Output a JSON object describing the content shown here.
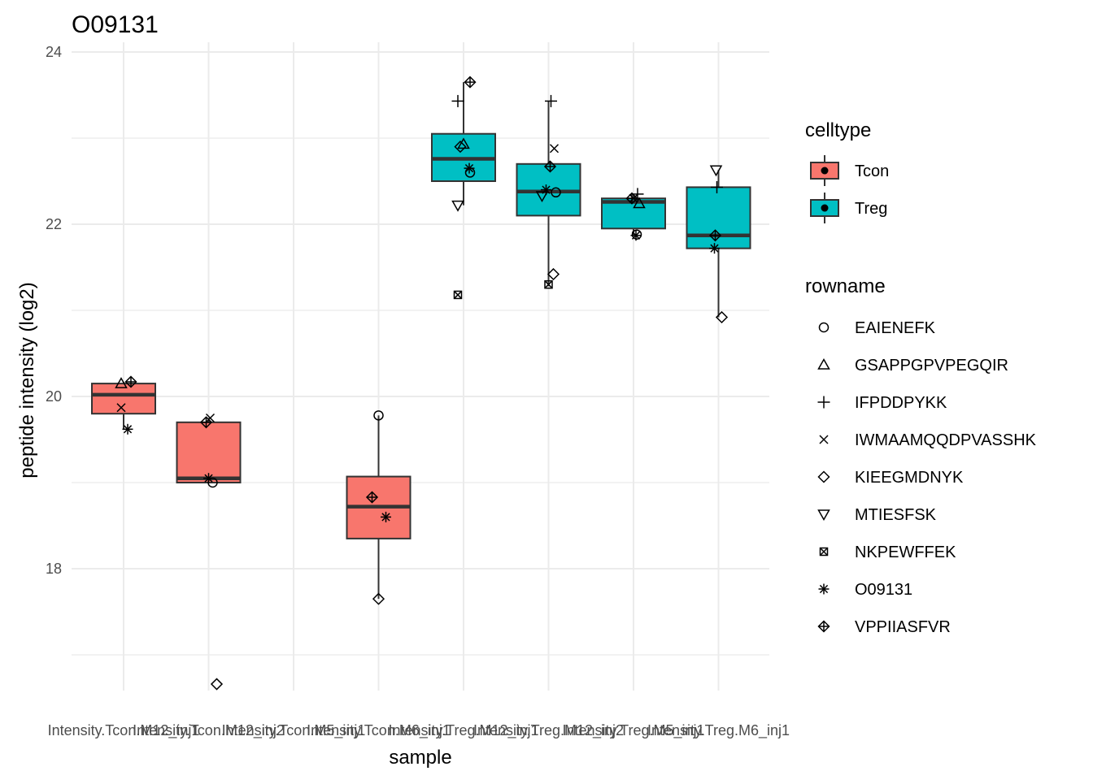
{
  "chart_data": {
    "type": "boxplot",
    "title": "O09131",
    "xlabel": "sample",
    "ylabel": "peptide intensity (log2)",
    "ylim": [
      16.5,
      24.3
    ],
    "y_ticks": [
      18,
      20,
      22,
      24
    ],
    "grid": true,
    "categories": [
      "Intensity.Tcon.M12_inj1",
      "Intensity.Tcon.M12_inj2",
      "Intensity.Tcon.M5_inj1",
      "Intensity.Tcon.M6_inj1",
      "Intensity.Treg.M12_inj1",
      "Intensity.Treg.M12_inj2",
      "Intensity.Treg.M5_inj1",
      "Intensity.Treg.M6_inj1"
    ],
    "celltype": [
      "Tcon",
      "Tcon",
      "Tcon",
      "Tcon",
      "Treg",
      "Treg",
      "Treg",
      "Treg"
    ],
    "celltype_colors": {
      "Tcon": "#F8766D",
      "Treg": "#00BFC4"
    },
    "boxes": [
      {
        "q1": 19.8,
        "median": 20.02,
        "q3": 20.15,
        "low": 19.62,
        "high": 20.17
      },
      {
        "q1": 19.0,
        "median": 19.05,
        "q3": 19.7,
        "low": 19.0,
        "high": 19.75
      },
      null,
      {
        "q1": 18.35,
        "median": 18.72,
        "q3": 19.07,
        "low": 17.65,
        "high": 19.78
      },
      {
        "q1": 22.5,
        "median": 22.76,
        "q3": 23.05,
        "low": 22.22,
        "high": 23.65
      },
      {
        "q1": 22.1,
        "median": 22.38,
        "q3": 22.7,
        "low": 21.28,
        "high": 23.43
      },
      {
        "q1": 21.95,
        "median": 22.26,
        "q3": 22.3,
        "low": 21.87,
        "high": 22.35
      },
      {
        "q1": 21.72,
        "median": 21.87,
        "q3": 22.43,
        "low": 20.92,
        "high": 22.63
      }
    ],
    "outliers": [
      {
        "sample": 1,
        "y": 16.66,
        "peptide": "KIEEGMDNYK"
      }
    ],
    "points": [
      {
        "sample": 0,
        "y": 20.15,
        "peptide": "GSAPPGPVPEGQIR"
      },
      {
        "sample": 0,
        "y": 20.17,
        "peptide": "VPPIIASFVR"
      },
      {
        "sample": 0,
        "y": 19.87,
        "peptide": "IWMAAMQQDPVASSHK"
      },
      {
        "sample": 0,
        "y": 19.62,
        "peptide": "O09131"
      },
      {
        "sample": 1,
        "y": 19.75,
        "peptide": "IWMAAMQQDPVASSHK"
      },
      {
        "sample": 1,
        "y": 19.7,
        "peptide": "VPPIIASFVR"
      },
      {
        "sample": 1,
        "y": 19.05,
        "peptide": "O09131"
      },
      {
        "sample": 1,
        "y": 19.0,
        "peptide": "EAIENEFK"
      },
      {
        "sample": 3,
        "y": 19.78,
        "peptide": "EAIENEFK"
      },
      {
        "sample": 3,
        "y": 18.83,
        "peptide": "VPPIIASFVR"
      },
      {
        "sample": 3,
        "y": 18.6,
        "peptide": "O09131"
      },
      {
        "sample": 3,
        "y": 17.65,
        "peptide": "KIEEGMDNYK"
      },
      {
        "sample": 4,
        "y": 23.65,
        "peptide": "VPPIIASFVR"
      },
      {
        "sample": 4,
        "y": 23.43,
        "peptide": "IFPDDPYKK"
      },
      {
        "sample": 4,
        "y": 22.93,
        "peptide": "GSAPPGPVPEGQIR"
      },
      {
        "sample": 4,
        "y": 22.9,
        "peptide": "KIEEGMDNYK"
      },
      {
        "sample": 4,
        "y": 22.65,
        "peptide": "O09131"
      },
      {
        "sample": 4,
        "y": 22.6,
        "peptide": "EAIENEFK"
      },
      {
        "sample": 4,
        "y": 22.22,
        "peptide": "MTIESFSK"
      },
      {
        "sample": 4,
        "y": 21.18,
        "peptide": "NKPEWFFEK"
      },
      {
        "sample": 5,
        "y": 23.43,
        "peptide": "IFPDDPYKK"
      },
      {
        "sample": 5,
        "y": 22.88,
        "peptide": "IWMAAMQQDPVASSHK"
      },
      {
        "sample": 5,
        "y": 22.67,
        "peptide": "VPPIIASFVR"
      },
      {
        "sample": 5,
        "y": 22.4,
        "peptide": "O09131"
      },
      {
        "sample": 5,
        "y": 22.37,
        "peptide": "EAIENEFK"
      },
      {
        "sample": 5,
        "y": 22.33,
        "peptide": "MTIESFSK"
      },
      {
        "sample": 5,
        "y": 21.42,
        "peptide": "KIEEGMDNYK"
      },
      {
        "sample": 5,
        "y": 21.3,
        "peptide": "NKPEWFFEK"
      },
      {
        "sample": 6,
        "y": 22.35,
        "peptide": "IFPDDPYKK"
      },
      {
        "sample": 6,
        "y": 22.3,
        "peptide": "VPPIIASFVR"
      },
      {
        "sample": 6,
        "y": 22.3,
        "peptide": "IWMAAMQQDPVASSHK"
      },
      {
        "sample": 6,
        "y": 22.24,
        "peptide": "GSAPPGPVPEGQIR"
      },
      {
        "sample": 6,
        "y": 21.88,
        "peptide": "EAIENEFK"
      },
      {
        "sample": 6,
        "y": 21.87,
        "peptide": "O09131"
      },
      {
        "sample": 7,
        "y": 22.63,
        "peptide": "MTIESFSK"
      },
      {
        "sample": 7,
        "y": 22.43,
        "peptide": "IFPDDPYKK"
      },
      {
        "sample": 7,
        "y": 21.87,
        "peptide": "VPPIIASFVR"
      },
      {
        "sample": 7,
        "y": 21.72,
        "peptide": "O09131"
      },
      {
        "sample": 7,
        "y": 20.92,
        "peptide": "KIEEGMDNYK"
      }
    ],
    "legend": {
      "placement": "right",
      "celltype": {
        "title": "celltype",
        "entries": [
          "Tcon",
          "Treg"
        ]
      },
      "rowname": {
        "title": "rowname",
        "entries": [
          {
            "label": "EAIENEFK",
            "shape": "circle"
          },
          {
            "label": "GSAPPGPVPEGQIR",
            "shape": "triangle"
          },
          {
            "label": "IFPDDPYKK",
            "shape": "plus"
          },
          {
            "label": "IWMAAMQQDPVASSHK",
            "shape": "cross"
          },
          {
            "label": "KIEEGMDNYK",
            "shape": "diamond"
          },
          {
            "label": "MTIESFSK",
            "shape": "triangle-down"
          },
          {
            "label": "NKPEWFFEK",
            "shape": "square-cross"
          },
          {
            "label": "O09131",
            "shape": "asterisk"
          },
          {
            "label": "VPPIIASFVR",
            "shape": "diamond-plus"
          }
        ]
      }
    }
  }
}
